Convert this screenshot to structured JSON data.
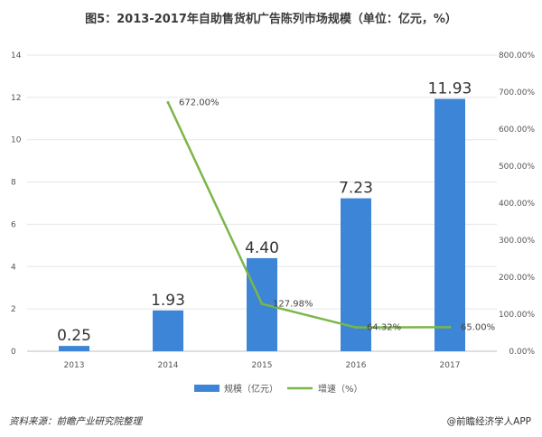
{
  "title": "图5：2013-2017年自助售货机广告陈列市场规模（单位：亿元，%）",
  "footer": {
    "source": "资料来源：前瞻产业研究院整理",
    "brand": "@前瞻经济学人APP"
  },
  "colors": {
    "bar": "#3d85d6",
    "line": "#7ab648"
  },
  "chart_data": {
    "type": "bar",
    "categories": [
      "2013",
      "2014",
      "2015",
      "2016",
      "2017"
    ],
    "series": [
      {
        "name": "规模（亿元）",
        "type": "bar",
        "axis": "left",
        "values": [
          0.25,
          1.93,
          4.4,
          7.23,
          11.93
        ],
        "labels": [
          "0.25",
          "1.93",
          "4.40",
          "7.23",
          "11.93"
        ]
      },
      {
        "name": "增速（%）",
        "type": "line",
        "axis": "right",
        "x": [
          "2014",
          "2015",
          "2016",
          "2017"
        ],
        "values": [
          672.0,
          127.98,
          64.32,
          65.0
        ],
        "labels": [
          "672.00%",
          "127.98%",
          "64.32%",
          "65.00%"
        ]
      }
    ],
    "y_left": {
      "ylim": [
        0,
        14
      ],
      "ticks": [
        "0",
        "2",
        "4",
        "6",
        "8",
        "10",
        "12",
        "14"
      ]
    },
    "y_right": {
      "ylim": [
        0,
        800
      ],
      "ticks": [
        "0.00%",
        "100.00%",
        "200.00%",
        "300.00%",
        "400.00%",
        "500.00%",
        "600.00%",
        "700.00%",
        "800.00%"
      ]
    },
    "grid": true,
    "legend_position": "bottom"
  }
}
